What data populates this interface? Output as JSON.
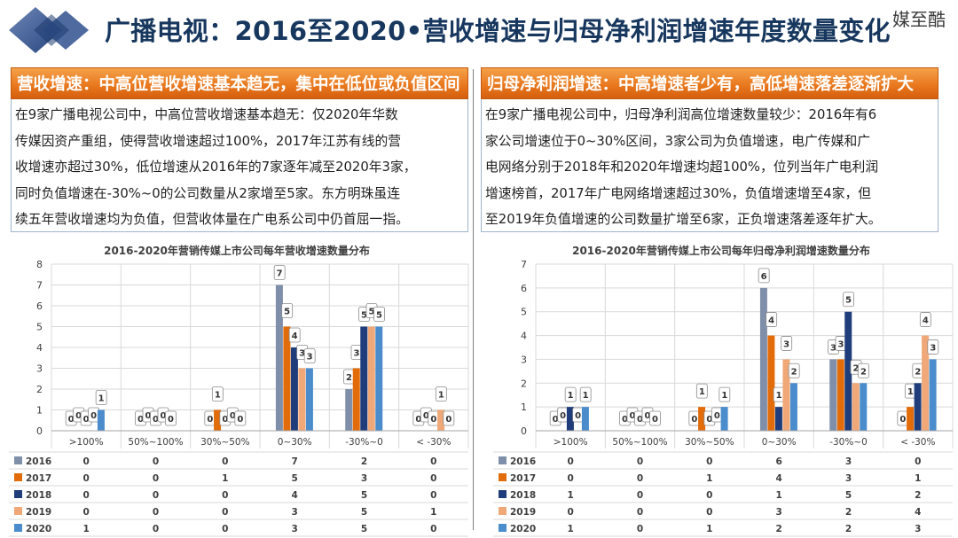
{
  "header": {
    "title": "广播电视：2016至2020•营收增速与归母净利润增速年度数量变化",
    "brand": "媒至酷"
  },
  "left_panel": {
    "heading": "营收增速：中高位营收增速基本趋无，集中在低位或负值区间",
    "lines": [
      "在9家广播电视公司中，中高位营收增速基本趋无：仅2020年华数",
      "传媒因资产重组，使得营收增速超过100%，2017年江苏有线的营",
      "收增速亦超过30%，低位增速从2016年的7家逐年减至2020年3家，",
      "同时负值增速在-30%~0的公司数量从2家增至5家。东方明珠虽连",
      "续五年营收增速均为负值，但营收体量在广电系公司中仍首屈一指。"
    ]
  },
  "right_panel": {
    "heading": "归母净利润增速：中高增速者少有，高低增速落差逐渐扩大",
    "lines": [
      "在9家广播电视公司中，归母净利润高位增速数量较少：2016年有6",
      "家公司增速位于0~30%区间，3家公司为负值增速，电广传媒和广",
      "电网络分别于2018年和2020年增速均超100%，位列当年广电利润",
      "增速榜首，2017年广电网络增速超过30%，负值增速增至4家，但",
      "至2019年负值增速的公司数量扩增至6家，正负增速落差逐年扩大。"
    ]
  },
  "chart_data": [
    {
      "type": "bar",
      "title": "2016-2020年营销传媒上市公司每年营收增速数量分布",
      "categories": [
        ">100%",
        "50%~100%",
        "30%~50%",
        "0~30%",
        "-30%~0",
        "< -30%"
      ],
      "ylim": [
        0,
        8
      ],
      "yticks": [
        0,
        1,
        2,
        3,
        4,
        5,
        6,
        7,
        8
      ],
      "series": [
        {
          "name": "2016",
          "color": "#7f8fa9",
          "values": [
            0,
            0,
            0,
            7,
            2,
            0
          ]
        },
        {
          "name": "2017",
          "color": "#e36c0a",
          "values": [
            0,
            0,
            1,
            5,
            3,
            0
          ]
        },
        {
          "name": "2018",
          "color": "#1f3d7a",
          "values": [
            0,
            0,
            0,
            4,
            5,
            0
          ]
        },
        {
          "name": "2019",
          "color": "#f0a878",
          "values": [
            0,
            0,
            0,
            3,
            5,
            1
          ]
        },
        {
          "name": "2020",
          "color": "#4a8ccc",
          "values": [
            1,
            0,
            0,
            3,
            5,
            0
          ]
        }
      ]
    },
    {
      "type": "bar",
      "title": "2016-2020年营销传媒上市公司每年归母净利润增速数量分布",
      "categories": [
        ">100%",
        "50%~100%",
        "30%~50%",
        "0~30%",
        "-30%~0",
        "< -30%"
      ],
      "ylim": [
        0,
        7
      ],
      "yticks": [
        0,
        1,
        2,
        3,
        4,
        5,
        6,
        7
      ],
      "series": [
        {
          "name": "2016",
          "color": "#7f8fa9",
          "values": [
            0,
            0,
            0,
            6,
            3,
            0
          ]
        },
        {
          "name": "2017",
          "color": "#e36c0a",
          "values": [
            0,
            0,
            1,
            4,
            3,
            1
          ]
        },
        {
          "name": "2018",
          "color": "#1f3d7a",
          "values": [
            1,
            0,
            0,
            1,
            5,
            2
          ]
        },
        {
          "name": "2019",
          "color": "#f0a878",
          "values": [
            0,
            0,
            0,
            3,
            2,
            4
          ]
        },
        {
          "name": "2020",
          "color": "#4a8ccc",
          "values": [
            1,
            0,
            1,
            2,
            2,
            3
          ]
        }
      ]
    }
  ]
}
